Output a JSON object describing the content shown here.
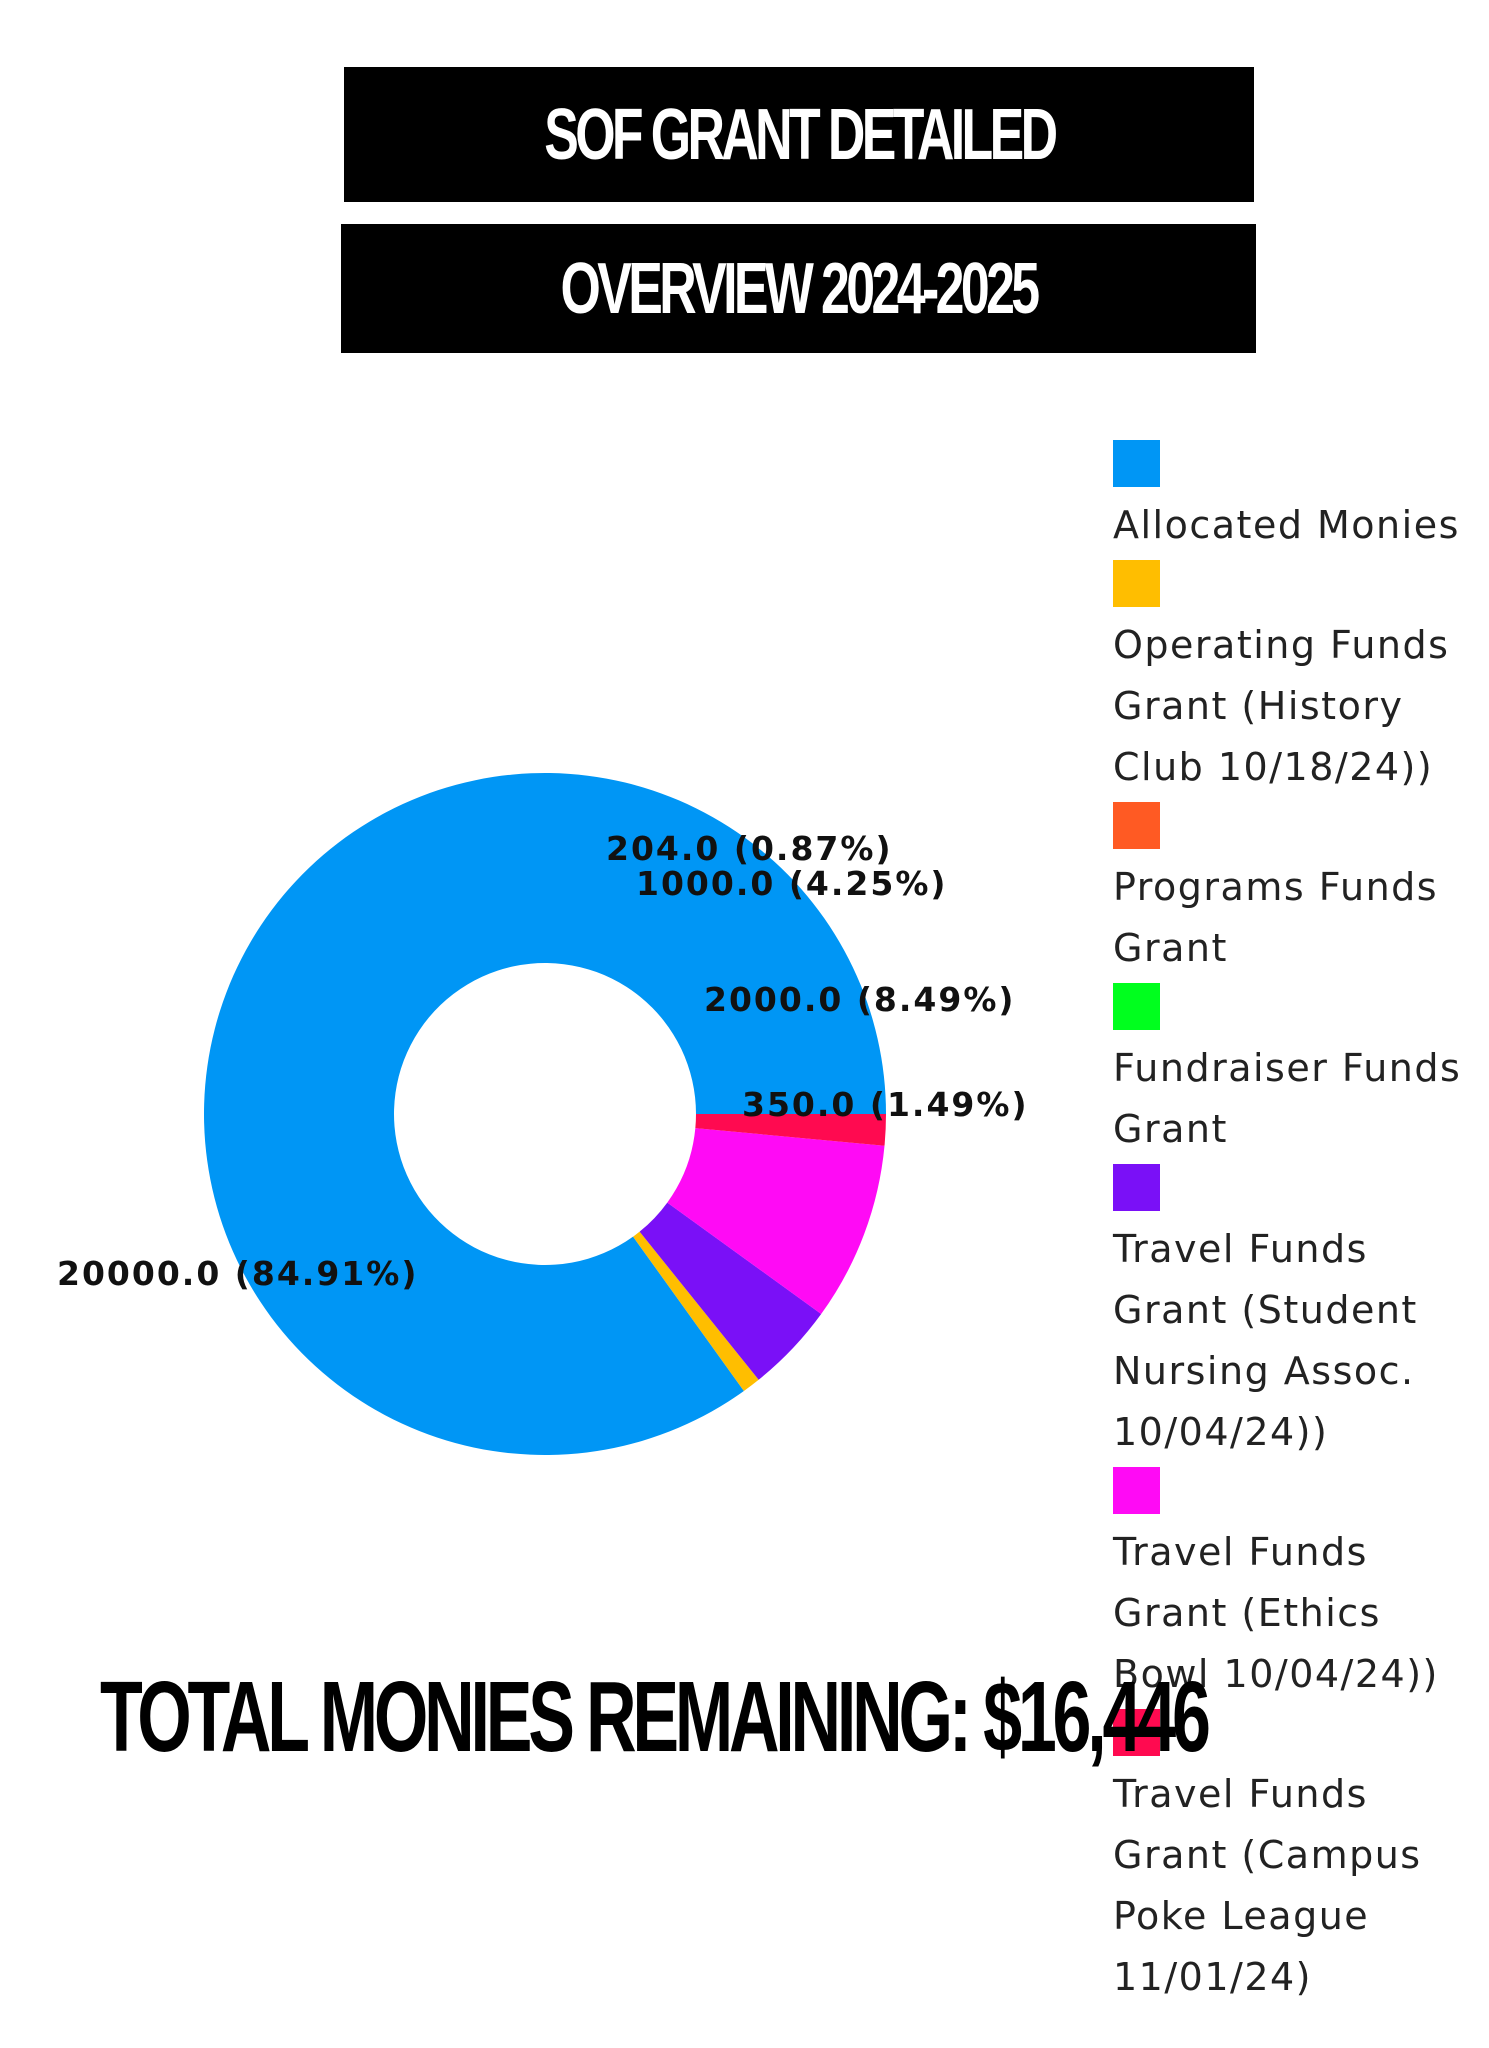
{
  "header": {
    "title_line_1": "SOF GRANT DETAILED",
    "title_line_2": "OVERVIEW 2024-2025"
  },
  "total": {
    "text": "TOTAL MONIES REMAINING: $16,446"
  },
  "chart_data": {
    "type": "pie",
    "donut": true,
    "start_angle_deg": 0,
    "direction": "counterclockwise",
    "slices": [
      {
        "value": 20000.0,
        "percent": 84.91,
        "label": "20000.0 (84.91%)",
        "color": "#0096F5"
      },
      {
        "value": 204.0,
        "percent": 0.87,
        "label": "204.0 (0.87%)",
        "color": "#FFBE00"
      },
      {
        "value": 1000.0,
        "percent": 4.25,
        "label": "1000.0 (4.25%)",
        "color": "#7A10F7"
      },
      {
        "value": 2000.0,
        "percent": 8.49,
        "label": "2000.0 (8.49%)",
        "color": "#FF0AF5"
      },
      {
        "value": 350.0,
        "percent": 1.49,
        "label": "350.0 (1.49%)",
        "color": "#FF0A50"
      }
    ],
    "legend": [
      {
        "label": "Allocated Monies",
        "color": "#0096F5"
      },
      {
        "label": "Operating Funds Grant (History Club 10/18/24))",
        "color": "#FFBE00"
      },
      {
        "label": "Programs Funds Grant",
        "color": "#FF5A23"
      },
      {
        "label": "Fundraiser Funds Grant",
        "color": "#00FF1E"
      },
      {
        "label": "Travel Funds Grant (Student Nursing Assoc. 10/04/24))",
        "color": "#7A10F7"
      },
      {
        "label": "Travel Funds Grant (Ethics Bowl 10/04/24))",
        "color": "#FF0AF5"
      },
      {
        "label": "Travel Funds Grant (Campus Poke League 11/01/24)",
        "color": "#FF0A50"
      }
    ],
    "legend_placement": "right"
  }
}
